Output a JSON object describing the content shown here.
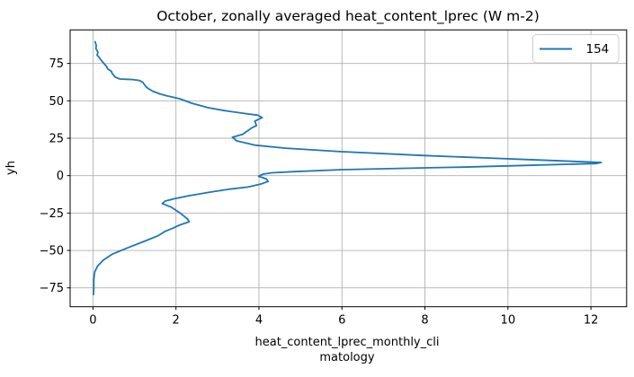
{
  "colors": {
    "line": "#1f77b4",
    "grid": "#b0b0b0",
    "spine": "#000000",
    "legend_border": "#cccccc",
    "background": "#ffffff",
    "text": "#000000"
  },
  "chart_data": {
    "type": "line",
    "title": "October, zonally averaged heat_content_lprec (W m-2)",
    "xlabel": "heat_content_lprec_monthly_climatology",
    "xlabel_lines": [
      "heat_content_lprec_monthly_cli",
      "matology"
    ],
    "ylabel": "yh",
    "grid": true,
    "legend": {
      "position": "upper right",
      "entries": [
        {
          "label": "154",
          "color": "#1f77b4"
        }
      ]
    },
    "xlim": [
      -0.55,
      12.86
    ],
    "ylim": [
      -87.6,
      97.4
    ],
    "xticks": [
      {
        "value": 0,
        "label": "0"
      },
      {
        "value": 2,
        "label": "2"
      },
      {
        "value": 4,
        "label": "4"
      },
      {
        "value": 6,
        "label": "6"
      },
      {
        "value": 8,
        "label": "8"
      },
      {
        "value": 10,
        "label": "10"
      },
      {
        "value": 12,
        "label": "12"
      }
    ],
    "yticks": [
      {
        "value": 75,
        "label": "75"
      },
      {
        "value": 50,
        "label": "50"
      },
      {
        "value": 25,
        "label": "25"
      },
      {
        "value": 0,
        "label": "0"
      },
      {
        "value": -25,
        "label": "−25"
      },
      {
        "value": -50,
        "label": "−50"
      },
      {
        "value": -75,
        "label": "−75"
      }
    ],
    "series": [
      {
        "name": "154",
        "color": "#1f77b4",
        "points": [
          [
            0.05,
            89.5
          ],
          [
            0.08,
            87.0
          ],
          [
            0.07,
            85.0
          ],
          [
            0.12,
            82.5
          ],
          [
            0.1,
            80.5
          ],
          [
            0.15,
            79.0
          ],
          [
            0.2,
            77.0
          ],
          [
            0.27,
            74.8
          ],
          [
            0.32,
            73.2
          ],
          [
            0.36,
            71.2
          ],
          [
            0.44,
            69.8
          ],
          [
            0.47,
            68.0
          ],
          [
            0.54,
            65.8
          ],
          [
            0.65,
            64.6
          ],
          [
            0.8,
            64.4
          ],
          [
            0.95,
            64.2
          ],
          [
            1.12,
            63.6
          ],
          [
            1.2,
            62.4
          ],
          [
            1.27,
            59.7
          ],
          [
            1.33,
            58.2
          ],
          [
            1.44,
            56.4
          ],
          [
            1.61,
            54.6
          ],
          [
            1.77,
            53.4
          ],
          [
            2.09,
            51.4
          ],
          [
            2.38,
            48.4
          ],
          [
            2.78,
            45.4
          ],
          [
            3.18,
            43.4
          ],
          [
            3.69,
            41.4
          ],
          [
            3.97,
            40.4
          ],
          [
            4.08,
            38.8
          ],
          [
            3.9,
            36.4
          ],
          [
            3.94,
            33.4
          ],
          [
            3.83,
            32.0
          ],
          [
            3.61,
            27.6
          ],
          [
            3.36,
            25.7
          ],
          [
            3.46,
            23.3
          ],
          [
            3.92,
            20.3
          ],
          [
            4.65,
            18.3
          ],
          [
            6.0,
            16.0
          ],
          [
            8.0,
            13.4
          ],
          [
            9.5,
            11.8
          ],
          [
            10.5,
            10.7
          ],
          [
            11.8,
            9.3
          ],
          [
            12.25,
            8.8
          ],
          [
            12.13,
            8.1
          ],
          [
            10.4,
            6.8
          ],
          [
            8.9,
            5.7
          ],
          [
            8.0,
            5.2
          ],
          [
            6.0,
            4.0
          ],
          [
            4.85,
            2.7
          ],
          [
            4.31,
            1.9
          ],
          [
            4.1,
            1.0
          ],
          [
            3.99,
            -0.4
          ],
          [
            4.18,
            -2.2
          ],
          [
            4.22,
            -3.9
          ],
          [
            4.06,
            -5.5
          ],
          [
            3.73,
            -7.6
          ],
          [
            3.3,
            -9.0
          ],
          [
            2.83,
            -11.0
          ],
          [
            2.32,
            -13.4
          ],
          [
            1.96,
            -15.4
          ],
          [
            1.74,
            -17.0
          ],
          [
            1.67,
            -18.7
          ],
          [
            1.89,
            -21.1
          ],
          [
            2.1,
            -25.0
          ],
          [
            2.28,
            -29.0
          ],
          [
            2.32,
            -30.8
          ],
          [
            2.07,
            -33.2
          ],
          [
            1.92,
            -35.2
          ],
          [
            1.74,
            -37.2
          ],
          [
            1.56,
            -40.3
          ],
          [
            1.2,
            -44.3
          ],
          [
            0.83,
            -48.3
          ],
          [
            0.47,
            -52.4
          ],
          [
            0.25,
            -56.4
          ],
          [
            0.11,
            -60.4
          ],
          [
            0.04,
            -64.5
          ],
          [
            0.02,
            -69.5
          ],
          [
            0.02,
            -75.0
          ],
          [
            0.01,
            -79.5
          ]
        ]
      }
    ]
  }
}
